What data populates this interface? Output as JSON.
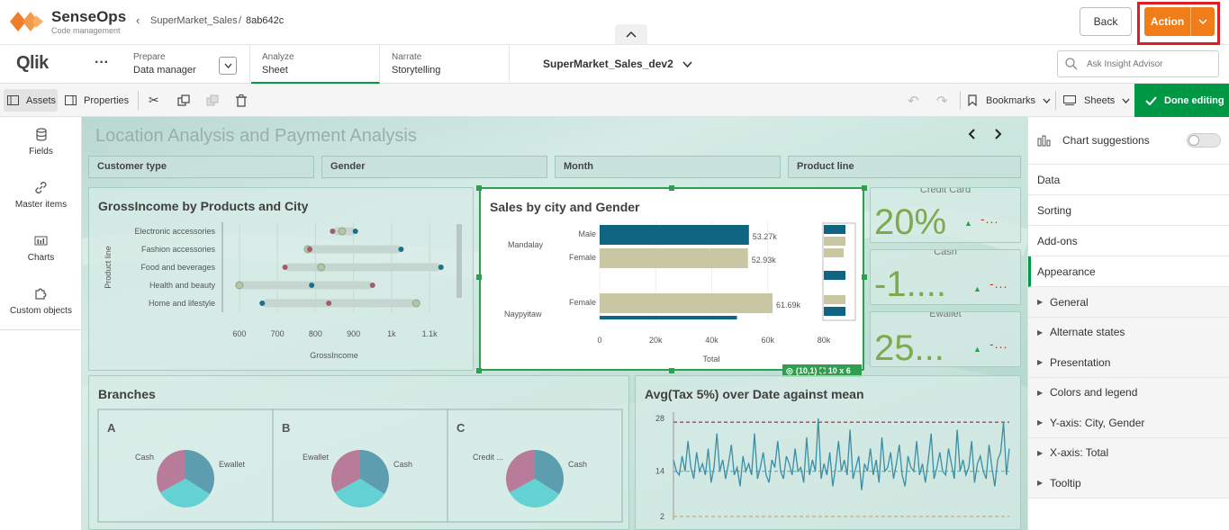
{
  "brand": {
    "name": "SenseOps",
    "tagline": "Code management"
  },
  "breadcrumb": {
    "app": "SuperMarket_Sales",
    "separator": "/",
    "id": "8ab642c"
  },
  "top_actions": {
    "back": "Back",
    "action": "Action"
  },
  "nav": {
    "logo": "Qlik",
    "prepare": {
      "small": "Prepare",
      "big": "Data manager"
    },
    "analyze": {
      "small": "Analyze",
      "big": "Sheet"
    },
    "narrate": {
      "small": "Narrate",
      "big": "Storytelling"
    },
    "sheet_name": "SuperMarket_Sales_dev2",
    "search_placeholder": "Ask Insight Advisor"
  },
  "toolbar": {
    "assets": "Assets",
    "properties": "Properties",
    "bookmarks": "Bookmarks",
    "sheets": "Sheets",
    "done": "Done editing"
  },
  "left_panel": [
    {
      "label": "Fields",
      "icon": "database-icon"
    },
    {
      "label": "Master items",
      "icon": "link-icon"
    },
    {
      "label": "Charts",
      "icon": "bar-chart-icon"
    },
    {
      "label": "Custom objects",
      "icon": "puzzle-icon"
    }
  ],
  "sheet": {
    "title": "Location Analysis and Payment Analysis",
    "filters": [
      "Customer type",
      "Gender",
      "Month",
      "Product line"
    ]
  },
  "right_panel": {
    "chart_suggestions": "Chart suggestions",
    "rows": [
      "Data",
      "Sorting",
      "Add-ons",
      "Appearance"
    ],
    "sub_rows": [
      "General",
      "Alternate states",
      "Presentation",
      "Colors and legend",
      "Y-axis: City, Gender",
      "X-axis: Total",
      "Tooltip"
    ]
  },
  "kpis": [
    {
      "title": "Credit Card",
      "value": "20%",
      "trend": "-..."
    },
    {
      "title": "Cash",
      "value": "-1....",
      "trend": "-..."
    },
    {
      "title": "Ewallet",
      "value": "25...",
      "trend": "-..."
    }
  ],
  "selection_badge": {
    "pos": "(10,1)",
    "size": "10 x 6"
  },
  "chart_data": [
    {
      "type": "scatter",
      "title": "GrossIncome by Products and City",
      "xlabel": "GrossIncome",
      "ylabel": "Product line",
      "categories": [
        "Electronic accessories",
        "Fashion accessories",
        "Food and beverages",
        "Health and beauty",
        "Home and lifestyle"
      ],
      "x_ticks": [
        "600",
        "700",
        "800",
        "900",
        "1k",
        "1.1k"
      ],
      "xlim": [
        560,
        1140
      ],
      "series": [
        {
          "color": "#b4c5a6",
          "values": [
            870,
            780,
            815,
            600,
            1065
          ]
        },
        {
          "color": "#1f6f8b",
          "values": [
            905,
            1025,
            1130,
            790,
            660
          ]
        },
        {
          "color": "#a35c6c",
          "values": [
            845,
            785,
            720,
            950,
            835
          ]
        }
      ]
    },
    {
      "type": "bar",
      "title": "Sales by city and Gender",
      "xlabel": "Total",
      "x_ticks": [
        "0",
        "20k",
        "40k",
        "60k",
        "80k"
      ],
      "xlim": [
        0,
        80000
      ],
      "cities": [
        "Mandalay",
        "Naypyitaw"
      ],
      "bars": [
        {
          "label": "Male",
          "value": 53270,
          "display": "53.27k",
          "color": "#0e6481"
        },
        {
          "label": "Female",
          "value": 52930,
          "display": "52.93k",
          "color": "#c8c6a3"
        },
        {
          "label": "Female",
          "value": 61690,
          "display": "61.69k",
          "color": "#c8c6a3"
        },
        {
          "label": "",
          "value": 49000,
          "display": "",
          "color": "#0e6481"
        }
      ]
    },
    {
      "type": "pie",
      "title": "Branches",
      "panels": [
        {
          "name": "A",
          "labels": [
            "Cash",
            "Ewallet"
          ]
        },
        {
          "name": "B",
          "labels": [
            "Ewallet",
            "Cash"
          ]
        },
        {
          "name": "C",
          "labels": [
            "Credit ...",
            "Cash"
          ]
        }
      ],
      "slices": [
        {
          "value": 34,
          "color": "#5c9db0"
        },
        {
          "value": 33,
          "color": "#64d2d3"
        },
        {
          "value": 33,
          "color": "#b87b99"
        }
      ]
    },
    {
      "type": "line",
      "title": "Avg(Tax 5%) over Date against mean",
      "y_ticks": [
        "28",
        "14",
        "2"
      ],
      "ylim": [
        2,
        28
      ],
      "reference_lines": [
        {
          "value": 27,
          "color": "#b04060"
        },
        {
          "value": 14,
          "color": "#5fc4c4"
        },
        {
          "value": 2,
          "color": "#c9a97a"
        }
      ],
      "values": [
        17,
        14,
        13,
        18,
        14,
        22,
        15,
        12,
        19,
        14,
        16,
        13,
        20,
        11,
        15,
        24,
        14,
        17,
        12,
        16,
        21,
        13,
        15,
        10,
        18,
        14,
        16,
        13,
        24,
        12,
        15,
        19,
        13,
        11,
        17,
        15,
        22,
        14,
        12,
        18,
        16,
        13,
        20,
        14,
        15,
        11,
        23,
        13,
        17,
        14,
        28,
        12,
        16,
        13,
        19,
        10,
        15,
        22,
        14,
        17,
        13,
        25,
        12,
        15,
        18,
        9,
        16,
        14,
        20,
        13,
        17,
        11,
        23,
        14,
        15,
        19,
        12,
        16,
        21,
        13,
        10,
        18,
        15,
        14,
        22,
        13,
        16,
        11,
        17,
        24,
        12,
        15,
        19,
        14,
        13,
        20,
        16,
        12,
        25,
        14,
        17,
        13,
        15,
        22,
        11,
        16,
        18,
        14,
        12,
        21,
        15,
        10,
        17,
        19,
        27,
        13,
        20
      ]
    }
  ]
}
